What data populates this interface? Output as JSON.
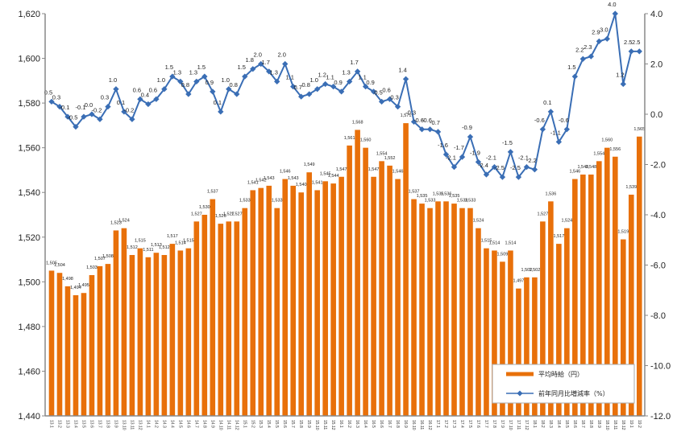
{
  "chart_data": {
    "type": "bar+line",
    "title": "",
    "categories": [
      "13.1",
      "13.2",
      "13.3",
      "13.4",
      "13.5",
      "13.6",
      "13.7",
      "13.8",
      "13.9",
      "13.10",
      "13.11",
      "13.12",
      "14.1",
      "14.2",
      "14.3",
      "14.4",
      "14.5",
      "14.6",
      "14.7",
      "14.8",
      "14.9",
      "14.10",
      "14.11",
      "14.12",
      "15.1",
      "15.2",
      "15.3",
      "15.4",
      "15.5",
      "15.6",
      "15.7",
      "15.8",
      "15.9",
      "15.10",
      "15.11",
      "15.12",
      "16.1",
      "16.2",
      "16.3",
      "16.4",
      "16.5",
      "16.6",
      "16.7",
      "16.8",
      "16.9",
      "16.10",
      "16.11",
      "16.12",
      "17.1",
      "17.2",
      "17.3",
      "17.4",
      "17.5",
      "17.6",
      "17.7",
      "17.8",
      "17.9",
      "17.10",
      "17.11",
      "17.12",
      "18.1",
      "18.2",
      "18.3",
      "18.4",
      "18.5",
      "18.6",
      "18.7",
      "18.8",
      "18.9",
      "18.10",
      "18.11",
      "18.12",
      "19.1",
      "19.2"
    ],
    "series": [
      {
        "name": "平均時給（円）",
        "type": "bar",
        "axis": "left",
        "color": "#E8700A",
        "values": [
          1505,
          1504,
          1498,
          1494,
          1495,
          1503,
          1507,
          1508,
          1523,
          1524,
          1512,
          1515,
          1511,
          1513,
          1512,
          1517,
          1514,
          1515,
          1527,
          1530,
          1537,
          1526,
          1527,
          1527,
          1533,
          1541,
          1542,
          1543,
          1533,
          1546,
          1543,
          1540,
          1549,
          1541,
          1545,
          1544,
          1547,
          1561,
          1568,
          1560,
          1547,
          1554,
          1552,
          1546,
          1571,
          1537,
          1535,
          1533,
          1536,
          1536,
          1535,
          1533,
          1533,
          1524,
          1515,
          1514,
          1509,
          1514,
          1497,
          1502,
          1502,
          1527,
          1536,
          1517,
          1524,
          1546,
          1548,
          1548,
          1554,
          1560,
          1556,
          1519,
          1539,
          1565
        ]
      },
      {
        "name": "前年同月比増減率（%）",
        "type": "line",
        "axis": "right",
        "color": "#3A6EB5",
        "values": [
          0.5,
          0.3,
          -0.1,
          -0.5,
          -0.1,
          0.0,
          -0.2,
          0.3,
          1.0,
          0.1,
          -0.2,
          0.6,
          0.4,
          0.6,
          1.0,
          1.5,
          1.3,
          0.8,
          1.3,
          1.5,
          0.9,
          0.1,
          1.0,
          0.8,
          1.5,
          1.8,
          2.0,
          1.7,
          1.3,
          2.0,
          1.1,
          0.7,
          0.8,
          1.0,
          1.2,
          1.1,
          0.9,
          1.3,
          1.7,
          1.1,
          0.9,
          0.5,
          0.6,
          0.3,
          1.4,
          -0.3,
          -0.6,
          -0.6,
          -0.7,
          -1.6,
          -2.1,
          -1.7,
          -0.9,
          -1.9,
          -2.4,
          -2.1,
          -2.5,
          -1.5,
          -2.5,
          -2.1,
          -2.2,
          -0.6,
          0.1,
          -1.1,
          -0.6,
          1.5,
          2.2,
          2.3,
          2.9,
          3.0,
          4.0,
          1.2,
          2.5,
          2.5
        ]
      }
    ],
    "y_left": {
      "range": [
        1440,
        1620
      ],
      "ticks": [
        "1,440",
        "1,460",
        "1,480",
        "1,500",
        "1,520",
        "1,540",
        "1,560",
        "1,580",
        "1,600",
        "1,620"
      ]
    },
    "y_right": {
      "range": [
        -12,
        4
      ],
      "ticks": [
        "-12.0",
        "-10.0",
        "-8.0",
        "-6.0",
        "-4.0",
        "-2.0",
        "0.0",
        "2.0",
        "4.0"
      ]
    },
    "grid": false,
    "legend": {
      "placement": "bottom-right",
      "items": [
        "平均時給（円）",
        "前年同月比増減率（%）"
      ]
    }
  }
}
